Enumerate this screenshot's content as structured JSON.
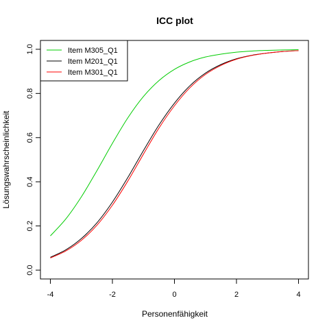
{
  "chart_data": {
    "type": "line",
    "title": "ICC plot",
    "xlabel": "Personenfähigkeit",
    "ylabel": "Lösungswahrscheinlichkeit",
    "xlim": [
      -4.32,
      4.32
    ],
    "ylim": [
      -0.04,
      1.04
    ],
    "xticks": [
      -4,
      -2,
      0,
      2,
      4
    ],
    "yticks": [
      0.0,
      0.2,
      0.4,
      0.6,
      0.8,
      1.0
    ],
    "xtick_labels": [
      "-4",
      "-2",
      "0",
      "2",
      "4"
    ],
    "ytick_labels": [
      "0.0",
      "0.2",
      "0.4",
      "0.6",
      "0.8",
      "1.0"
    ],
    "grid": false,
    "legend_position": "top-left",
    "x": [
      -4,
      -3.5,
      -3,
      -2.5,
      -2,
      -1.5,
      -1,
      -0.5,
      0,
      0.5,
      1,
      1.5,
      2,
      2.5,
      3,
      3.5,
      4
    ],
    "series": [
      {
        "name": "Item M305_Q1",
        "color": "#00cc00",
        "values": [
          0.155,
          0.232,
          0.332,
          0.45,
          0.574,
          0.69,
          0.786,
          0.858,
          0.909,
          0.943,
          0.965,
          0.978,
          0.987,
          0.992,
          0.995,
          0.997,
          0.998
        ]
      },
      {
        "name": "Item M201_Q1",
        "color": "#000000",
        "values": [
          0.058,
          0.092,
          0.143,
          0.214,
          0.308,
          0.42,
          0.541,
          0.657,
          0.756,
          0.835,
          0.892,
          0.931,
          0.957,
          0.973,
          0.983,
          0.99,
          0.994
        ]
      },
      {
        "name": "Item M301_Q1",
        "color": "#ff0000",
        "values": [
          0.055,
          0.087,
          0.135,
          0.203,
          0.294,
          0.404,
          0.525,
          0.643,
          0.744,
          0.826,
          0.886,
          0.927,
          0.955,
          0.972,
          0.983,
          0.99,
          0.994
        ]
      }
    ]
  }
}
